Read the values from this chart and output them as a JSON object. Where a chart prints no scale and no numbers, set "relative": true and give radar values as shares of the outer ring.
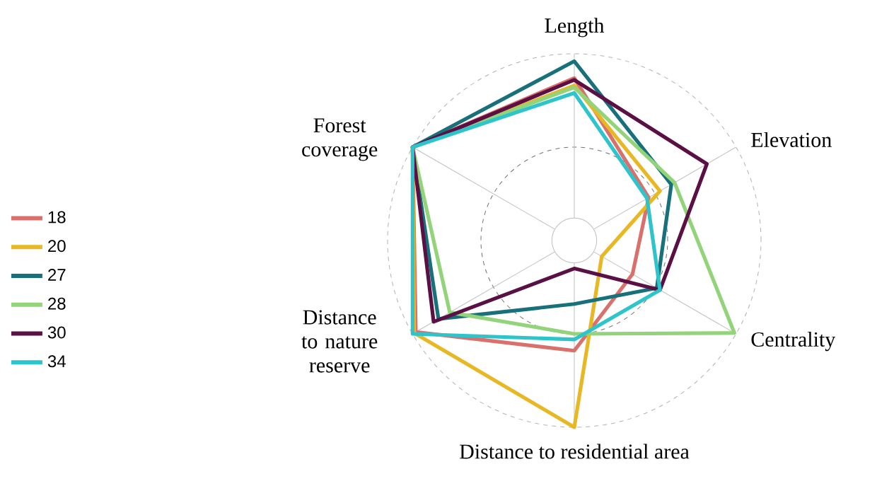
{
  "chart_data": {
    "type": "radar",
    "relative": true,
    "grid": true,
    "legend": "left",
    "categories": [
      "Length",
      "Elevation",
      "Centrality",
      "Distance to residential area",
      "Distance to nature reserve",
      "Forest coverage"
    ],
    "series": [
      {
        "name": "18",
        "color": "#d9706b",
        "values": [
          0.87,
          0.46,
          0.36,
          0.59,
          0.98,
          1.0
        ]
      },
      {
        "name": "20",
        "color": "#e8b824",
        "values": [
          0.83,
          0.53,
          0.17,
          1.0,
          0.99,
          1.0
        ]
      },
      {
        "name": "27",
        "color": "#17707a",
        "values": [
          0.96,
          0.6,
          0.51,
          0.34,
          0.84,
          1.0
        ]
      },
      {
        "name": "28",
        "color": "#93d47a",
        "values": [
          0.82,
          0.62,
          0.99,
          0.5,
          0.77,
          1.0
        ]
      },
      {
        "name": "30",
        "color": "#5a0f45",
        "values": [
          0.86,
          0.82,
          0.53,
          0.15,
          0.87,
          1.0
        ]
      },
      {
        "name": "34",
        "color": "#2ec4cc",
        "values": [
          0.79,
          0.45,
          0.53,
          0.53,
          1.0,
          1.0
        ]
      }
    ]
  }
}
